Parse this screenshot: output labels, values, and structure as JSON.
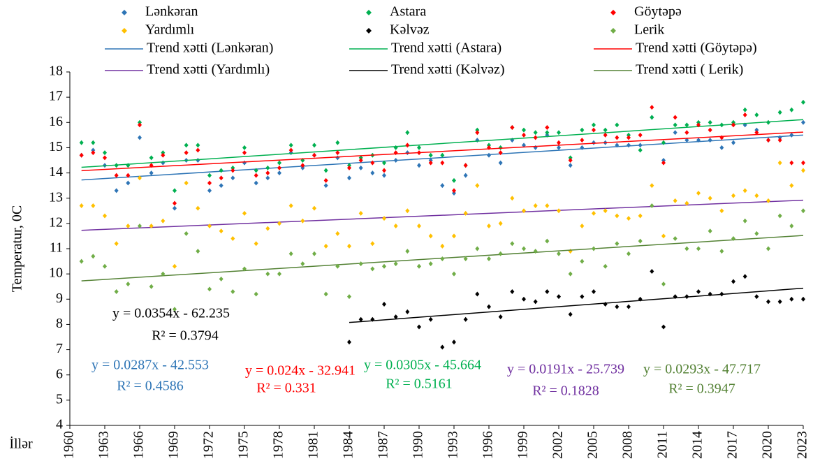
{
  "chart_data": {
    "type": "scatter",
    "ylabel": "Temperatur, 0C",
    "xlabel": "İllər",
    "xlim": [
      1960,
      2023
    ],
    "xticks": [
      1960,
      1963,
      1966,
      1969,
      1972,
      1975,
      1978,
      1981,
      1984,
      1987,
      1990,
      1993,
      1996,
      1999,
      2002,
      2005,
      2008,
      2011,
      2014,
      2017,
      2020,
      2023
    ],
    "ylim": [
      4,
      18
    ],
    "yticks": [
      4,
      5,
      6,
      7,
      8,
      9,
      10,
      11,
      12,
      13,
      14,
      15,
      16,
      17,
      18
    ],
    "trendline": true,
    "series": [
      {
        "name": "Lənkəran",
        "trend_name": "Trend xətti (Lənkəran)",
        "color": "#2e75b6",
        "x_start": 1961,
        "values": [
          14.7,
          14.9,
          14.3,
          13.3,
          13.6,
          15.4,
          14.0,
          14.4,
          12.6,
          14.5,
          14.5,
          13.3,
          13.5,
          13.8,
          14.4,
          13.6,
          13.8,
          14.0,
          14.8,
          14.2,
          14.7,
          13.5,
          14.6,
          13.8,
          14.2,
          14.0,
          13.9,
          14.5,
          14.8,
          14.3,
          14.5,
          13.5,
          13.2,
          13.9,
          15.3,
          14.7,
          14.4,
          15.3,
          15.1,
          15.0,
          15.5,
          15.0,
          14.3,
          15.0,
          15.2,
          15.2,
          15.1,
          15.1,
          15.1,
          16.2,
          14.5,
          15.6,
          15.3,
          15.3,
          15.3,
          15.0,
          15.2,
          15.9,
          15.7,
          15.3,
          15.4,
          15.5,
          16.0
        ]
      },
      {
        "name": "Astara",
        "trend_name": "Trend xətti (Astara)",
        "color": "#00b050",
        "x_start": 1961,
        "values": [
          15.2,
          15.2,
          14.8,
          14.3,
          14.3,
          16.0,
          14.6,
          14.8,
          13.3,
          15.1,
          15.1,
          13.9,
          14.1,
          14.2,
          15.0,
          14.1,
          14.2,
          14.4,
          15.1,
          14.5,
          15.1,
          14.1,
          15.2,
          14.3,
          14.6,
          14.7,
          14.4,
          15.0,
          15.6,
          15.0,
          14.7,
          14.7,
          13.7,
          14.3,
          15.7,
          15.1,
          15.0,
          15.8,
          15.7,
          15.6,
          15.6,
          15.6,
          14.6,
          15.7,
          15.9,
          15.7,
          15.9,
          15.5,
          14.9,
          16.2,
          15.2,
          15.9,
          15.9,
          16.0,
          16.0,
          15.9,
          16.0,
          16.5,
          16.3,
          16.0,
          16.4,
          16.5,
          16.8
        ]
      },
      {
        "name": "Göytəpə",
        "trend_name": "Trend xətti (Göytəpə)",
        "color": "#ff0000",
        "x_start": 1961,
        "values": [
          14.7,
          14.8,
          14.6,
          13.9,
          13.9,
          15.9,
          14.3,
          14.7,
          12.8,
          14.8,
          14.9,
          13.6,
          13.8,
          14.1,
          14.8,
          13.9,
          14.0,
          14.2,
          14.9,
          14.3,
          14.7,
          13.7,
          14.8,
          14.2,
          14.5,
          14.4,
          14.1,
          14.8,
          15.1,
          14.8,
          14.4,
          14.4,
          13.3,
          14.3,
          15.6,
          15.0,
          14.8,
          15.8,
          15.5,
          15.4,
          15.8,
          15.2,
          14.5,
          15.3,
          15.7,
          15.5,
          15.4,
          15.4,
          15.5,
          16.6,
          14.4,
          16.2,
          15.6,
          15.9,
          15.7,
          15.4,
          15.9,
          16.3,
          15.6,
          15.3,
          15.3,
          14.4,
          14.4
        ]
      },
      {
        "name": "Yardımlı",
        "trend_name": "Trend xətti (Yardımlı)",
        "color": "#ffc000",
        "trend_color": "#7030a0",
        "x_start": 1961,
        "values": [
          12.7,
          12.7,
          12.3,
          11.2,
          11.9,
          13.8,
          11.9,
          12.1,
          10.3,
          13.6,
          12.6,
          11.9,
          11.7,
          11.4,
          12.4,
          11.2,
          11.8,
          12.0,
          12.7,
          12.1,
          12.6,
          11.1,
          11.6,
          11.1,
          12.4,
          11.2,
          12.2,
          11.9,
          12.5,
          11.9,
          11.5,
          11.1,
          11.5,
          12.4,
          13.5,
          11.9,
          12.0,
          13.0,
          12.5,
          12.7,
          12.7,
          12.5,
          10.9,
          11.9,
          12.4,
          12.5,
          12.3,
          12.2,
          12.3,
          13.5,
          11.5,
          12.9,
          12.8,
          13.2,
          13.0,
          12.5,
          13.1,
          13.3,
          13.1,
          12.9,
          14.4,
          13.5,
          14.1
        ]
      },
      {
        "name": "Kəlvəz",
        "trend_name": "Trend xətti (Kəlvəz)",
        "color": "#000000",
        "x_start": 1984,
        "values": [
          7.3,
          8.2,
          8.2,
          8.8,
          8.3,
          8.5,
          7.9,
          8.2,
          7.1,
          7.3,
          8.2,
          9.2,
          8.7,
          8.3,
          9.3,
          9.0,
          8.9,
          9.3,
          9.1,
          8.4,
          9.1,
          9.3,
          8.8,
          8.7,
          8.7,
          9.0,
          10.1,
          7.9,
          9.1,
          9.1,
          9.3,
          9.2,
          9.2,
          9.7,
          9.9,
          9.1,
          8.9,
          8.9,
          9.0,
          9.0
        ]
      },
      {
        "name": "Lerik",
        "trend_name": "Trend xətti ( Lerik)",
        "color": "#70ad47",
        "trend_color": "#548235",
        "x_start": 1961,
        "values": [
          10.5,
          10.7,
          10.3,
          9.3,
          9.6,
          11.9,
          9.5,
          10.0,
          8.6,
          11.6,
          10.9,
          9.4,
          9.8,
          9.3,
          10.2,
          9.2,
          10.0,
          10.0,
          10.8,
          10.4,
          10.8,
          9.2,
          10.3,
          9.1,
          10.4,
          10.2,
          10.3,
          10.4,
          10.9,
          10.3,
          10.4,
          10.6,
          10.0,
          10.6,
          11.0,
          10.6,
          10.8,
          11.2,
          11.0,
          10.9,
          11.3,
          10.8,
          10.0,
          10.5,
          11.0,
          10.3,
          11.2,
          10.8,
          11.3,
          12.7,
          9.6,
          11.4,
          11.0,
          11.0,
          11.7,
          10.9,
          11.4,
          12.1,
          11.6,
          11.0,
          12.3,
          11.9,
          12.5
        ]
      }
    ],
    "annotations": [
      {
        "text": "y = 0.0354x - 62.235",
        "color": "#000000"
      },
      {
        "text": "R² = 0.3794",
        "color": "#000000"
      },
      {
        "text": "y = 0.0287x - 42.553",
        "color": "#2e75b6"
      },
      {
        "text": "R² = 0.4586",
        "color": "#2e75b6"
      },
      {
        "text": "y = 0.024x - 32.941",
        "color": "#ff0000"
      },
      {
        "text": "R² = 0.331",
        "color": "#ff0000"
      },
      {
        "text": "y = 0.0305x - 45.664",
        "color": "#00b050"
      },
      {
        "text": "R² = 0.5161",
        "color": "#00b050"
      },
      {
        "text": "y = 0.0191x - 25.739",
        "color": "#7030a0"
      },
      {
        "text": "R² = 0.1828",
        "color": "#7030a0"
      },
      {
        "text": "y = 0.0293x - 47.717",
        "color": "#548235"
      },
      {
        "text": "R² = 0.3947",
        "color": "#548235"
      }
    ]
  }
}
